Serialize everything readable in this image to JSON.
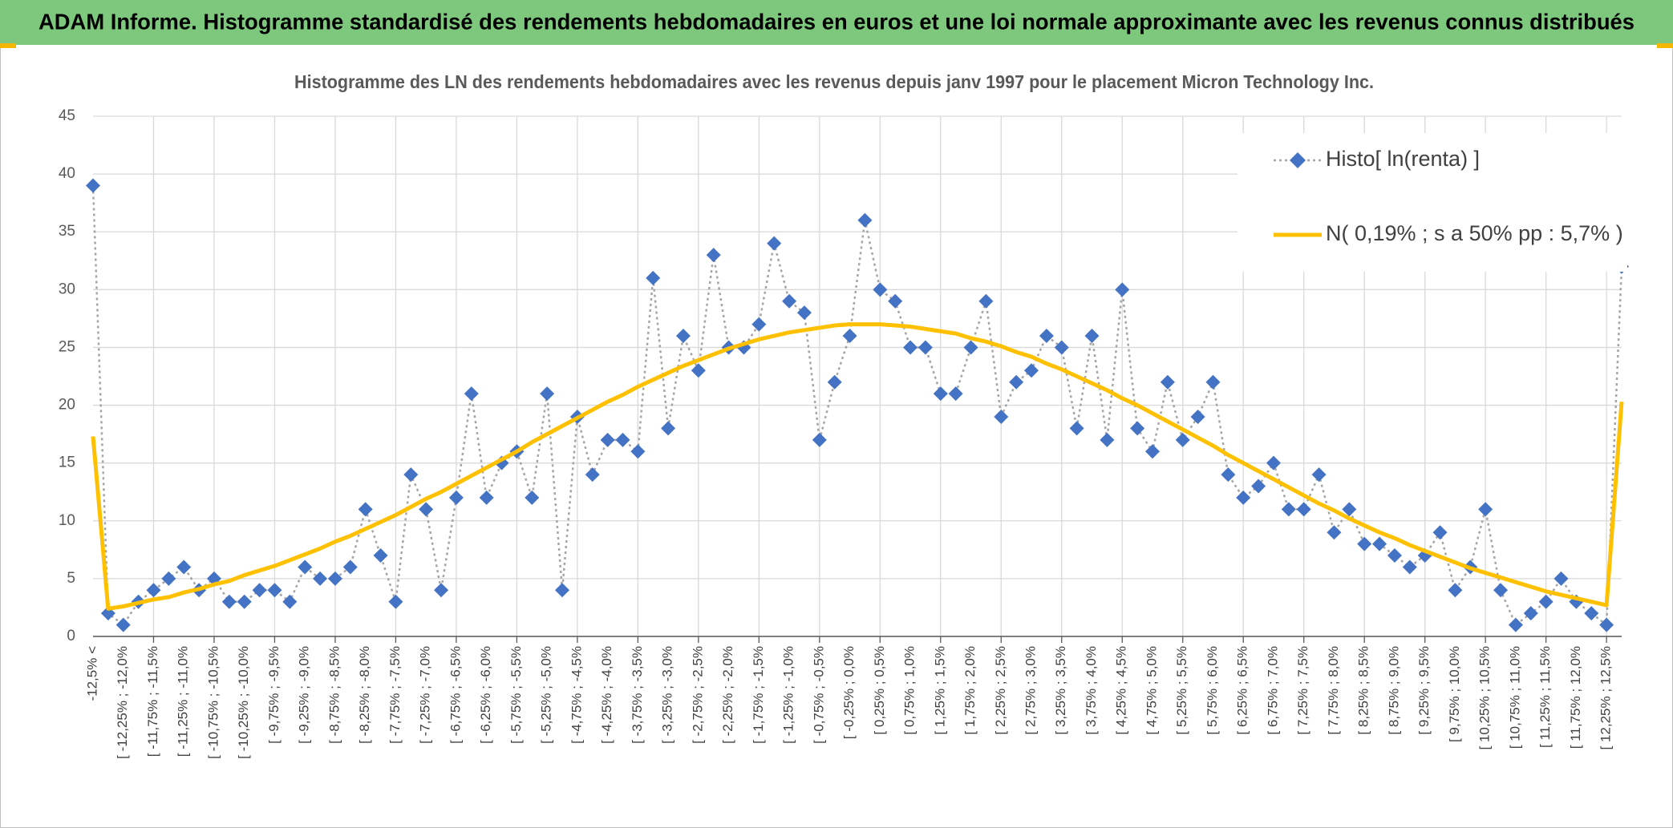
{
  "header": {
    "title": "ADAM Informe. Histogramme standardisé des rendements hebdomadaires en euros et une loi normale approximante avec les revenus connus distribués"
  },
  "chart_data": {
    "type": "line",
    "title": "Histogramme des LN des rendements hebdomadaires avec les revenus depuis janv 1997 pour le placement Micron Technology Inc.",
    "categories": [
      "-12,5% <",
      null,
      "[ -12,25% ; -12,0%",
      null,
      "[ -11,75% ; -11,5%",
      null,
      "[ -11,25% ; -11,0%",
      null,
      "[ -10,75% ; -10,5%",
      null,
      "[ -10,25% ; -10,0%",
      null,
      "[ -9,75% ; -9,5%",
      null,
      "[ -9,25% ; -9,0%",
      null,
      "[ -8,75% ; -8,5%",
      null,
      "[ -8,25% ; -8,0%",
      null,
      "[ -7,75% ; -7,5%",
      null,
      "[ -7,25% ; -7,0%",
      null,
      "[ -6,75% ; -6,5%",
      null,
      "[ -6,25% ; -6,0%",
      null,
      "[ -5,75% ; -5,5%",
      null,
      "[ -5,25% ; -5,0%",
      null,
      "[ -4,75% ; -4,5%",
      null,
      "[ -4,25% ; -4,0%",
      null,
      "[ -3,75% ; -3,5%",
      null,
      "[ -3,25% ; -3,0%",
      null,
      "[ -2,75% ; -2,5%",
      null,
      "[ -2,25% ; -2,0%",
      null,
      "[ -1,75% ; -1,5%",
      null,
      "[ -1,25% ; -1,0%",
      null,
      "[ -0,75% ; -0,5%",
      null,
      "[ -0,25% ; 0,0%",
      null,
      "[ 0,25% ; 0,5%",
      null,
      "[ 0,75% ; 1,0%",
      null,
      "[ 1,25% ; 1,5%",
      null,
      "[ 1,75% ; 2,0%",
      null,
      "[ 2,25% ; 2,5%",
      null,
      "[ 2,75% ; 3,0%",
      null,
      "[ 3,25% ; 3,5%",
      null,
      "[ 3,75% ; 4,0%",
      null,
      "[ 4,25% ; 4,5%",
      null,
      "[ 4,75% ; 5,0%",
      null,
      "[ 5,25% ; 5,5%",
      null,
      "[ 5,75% ; 6,0%",
      null,
      "[ 6,25% ; 6,5%",
      null,
      "[ 6,75% ; 7,0%",
      null,
      "[ 7,25% ; 7,5%",
      null,
      "[ 7,75% ; 8,0%",
      null,
      "[ 8,25% ; 8,5%",
      null,
      "[ 8,75% ; 9,0%",
      null,
      "[ 9,25% ; 9,5%",
      null,
      "[ 9,75% ; 10,0%",
      null,
      "[ 10,25% ; 10,5%",
      null,
      "[ 10,75% ; 11,0%",
      null,
      "[ 11,25% ; 11,5%",
      null,
      "[ 11,75% ; 12,0%",
      null,
      "[ 12,25% ; 12,5%",
      null
    ],
    "series": [
      {
        "name": "Histo[ ln(renta) ]",
        "color": "#4472c4",
        "line_color": "#a5a5a5",
        "values": [
          39,
          2,
          1,
          3,
          4,
          5,
          6,
          4,
          5,
          3,
          3,
          4,
          4,
          3,
          6,
          5,
          5,
          6,
          11,
          7,
          3,
          14,
          11,
          4,
          12,
          21,
          12,
          15,
          16,
          12,
          21,
          4,
          19,
          14,
          17,
          17,
          16,
          31,
          18,
          26,
          23,
          33,
          25,
          25,
          27,
          34,
          29,
          28,
          17,
          22,
          26,
          36,
          30,
          29,
          25,
          25,
          21,
          21,
          25,
          29,
          19,
          22,
          23,
          26,
          25,
          18,
          26,
          17,
          30,
          18,
          16,
          22,
          17,
          19,
          22,
          14,
          12,
          13,
          15,
          11,
          11,
          14,
          9,
          11,
          8,
          8,
          7,
          6,
          7,
          9,
          4,
          6,
          11,
          4,
          1,
          2,
          3,
          5,
          3,
          2,
          1,
          32
        ]
      },
      {
        "name": "N( 0,19% ; s a 50% pp : 5,7% )",
        "color": "#ffc000",
        "values": [
          17.3,
          2.4,
          2.6,
          2.9,
          3.2,
          3.4,
          3.8,
          4.1,
          4.5,
          4.8,
          5.3,
          5.7,
          6.1,
          6.6,
          7.1,
          7.6,
          8.2,
          8.7,
          9.3,
          9.9,
          10.5,
          11.2,
          11.9,
          12.5,
          13.2,
          13.9,
          14.6,
          15.3,
          16.0,
          16.8,
          17.5,
          18.2,
          18.9,
          19.6,
          20.3,
          20.9,
          21.6,
          22.2,
          22.8,
          23.4,
          23.9,
          24.4,
          24.9,
          25.3,
          25.7,
          26.0,
          26.3,
          26.5,
          26.7,
          26.9,
          27.0,
          27.0,
          27.0,
          26.9,
          26.8,
          26.6,
          26.4,
          26.2,
          25.8,
          25.5,
          25.1,
          24.6,
          24.2,
          23.6,
          23.1,
          22.5,
          21.9,
          21.3,
          20.6,
          20.0,
          19.3,
          18.6,
          17.9,
          17.2,
          16.5,
          15.7,
          15.0,
          14.3,
          13.6,
          12.9,
          12.2,
          11.5,
          10.9,
          10.2,
          9.6,
          9.0,
          8.5,
          7.9,
          7.4,
          6.9,
          6.4,
          5.9,
          5.5,
          5.1,
          4.7,
          4.3,
          3.9,
          3.6,
          3.3,
          3.0,
          2.7,
          20.3
        ]
      }
    ],
    "ylim": [
      0,
      45
    ],
    "yticks": [
      0,
      5,
      10,
      15,
      20,
      25,
      30,
      35,
      40,
      45
    ],
    "grid": true,
    "legend": "upper right"
  }
}
